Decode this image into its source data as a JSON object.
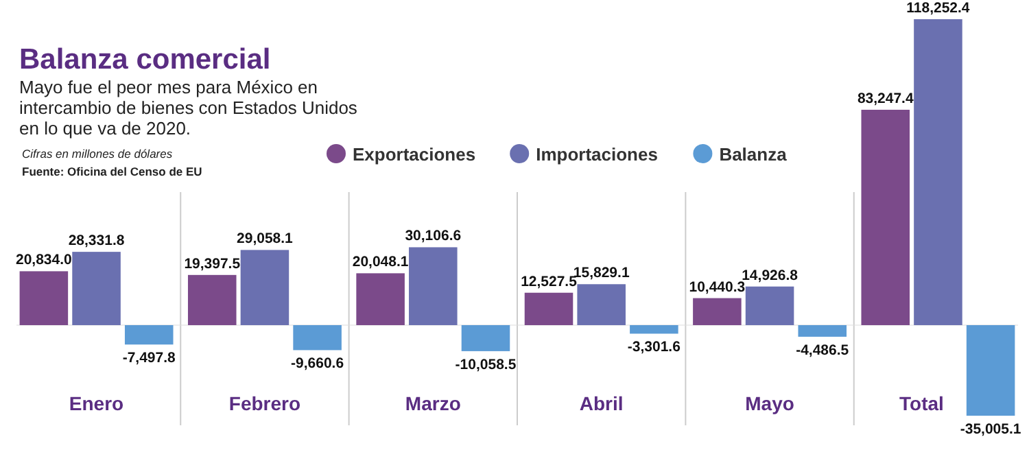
{
  "chart_data": {
    "type": "bar",
    "title": "Balanza comercial",
    "subtitle": "Mayo fue el peor mes para México en intercambio de bienes con Estados Unidos en lo que va de 2020.",
    "annotations": [
      "Cifras en millones de dólares",
      "Fuente: Oficina del Censo de EU"
    ],
    "categories": [
      "Enero",
      "Febrero",
      "Marzo",
      "Abril",
      "Mayo",
      "Total"
    ],
    "series": [
      {
        "name": "Exportaciones",
        "color": "#7b4a8a",
        "values": [
          20834.0,
          19397.5,
          20048.1,
          12527.5,
          10440.3,
          83247.4
        ],
        "value_labels": [
          "20,834.0",
          "19,397.5",
          "20,048.1",
          "12,527.5",
          "10,440.3",
          "83,247.4"
        ]
      },
      {
        "name": "Importaciones",
        "color": "#6a70b0",
        "values": [
          28331.8,
          29058.1,
          30106.6,
          15829.1,
          14926.8,
          118252.4
        ],
        "value_labels": [
          "28,331.8",
          "29,058.1",
          "30,106.6",
          "15,829.1",
          "14,926.8",
          "118,252.4"
        ]
      },
      {
        "name": "Balanza",
        "color": "#5b9bd5",
        "values": [
          -7497.8,
          -9660.6,
          -10058.5,
          -3301.6,
          -4486.5,
          -35005.1
        ],
        "value_labels": [
          "-7,497.8",
          "-9,660.6",
          "-10,058.5",
          "-3,301.6",
          "-4,486.5",
          "-35,005.1"
        ]
      }
    ],
    "legend": "top"
  }
}
